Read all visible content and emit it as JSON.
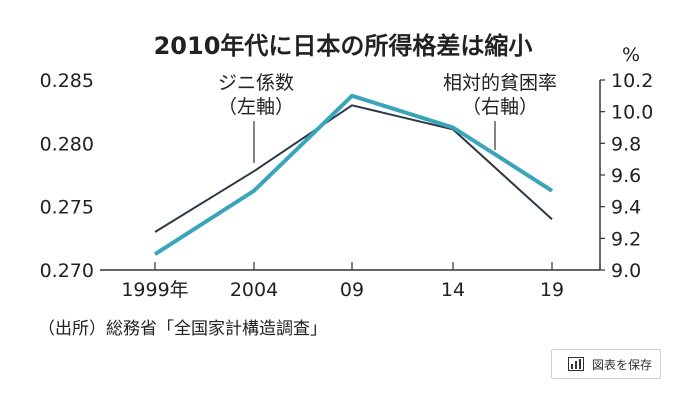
{
  "chart_data": {
    "type": "line",
    "title": "2010年代に日本の所得格差は縮小",
    "categories": [
      "1999年",
      "2004",
      "09",
      "14",
      "19"
    ],
    "series": [
      {
        "name": "ジニ係数",
        "axis_note": "（左軸）",
        "axis": "left",
        "color": "#2a3a45",
        "values": [
          0.273,
          0.2778,
          0.283,
          0.2811,
          0.274
        ]
      },
      {
        "name": "相対的貧困率",
        "axis_note": "（右軸）",
        "axis": "right",
        "color": "#3aa5b8",
        "values": [
          9.1,
          9.5,
          10.1,
          9.9,
          9.5
        ]
      }
    ],
    "left_axis": {
      "ylim": [
        0.27,
        0.285
      ],
      "ticks": [
        "0.270",
        "0.275",
        "0.280",
        "0.285"
      ]
    },
    "right_axis": {
      "unit": "%",
      "ylim": [
        9.0,
        10.2
      ],
      "ticks": [
        "9.0",
        "9.2",
        "9.4",
        "9.6",
        "9.8",
        "10.0",
        "10.2"
      ]
    },
    "source": "（出所）総務省「全国家計構造調査」"
  },
  "ui": {
    "save_button": "図表を保存"
  }
}
